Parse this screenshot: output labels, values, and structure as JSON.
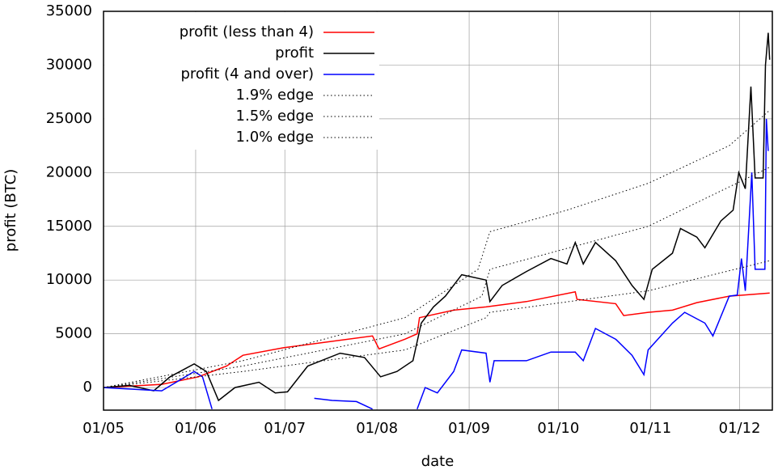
{
  "chart_data": {
    "type": "line",
    "x_label": "date",
    "y_label": "profit (BTC)",
    "xlim": [
      0,
      225
    ],
    "ylim": [
      -2100,
      35000
    ],
    "xticks": [
      {
        "value": 0,
        "label": "01/05"
      },
      {
        "value": 31,
        "label": "01/06"
      },
      {
        "value": 61,
        "label": "01/07"
      },
      {
        "value": 92,
        "label": "01/08"
      },
      {
        "value": 123,
        "label": "01/09"
      },
      {
        "value": 153,
        "label": "01/10"
      },
      {
        "value": 184,
        "label": "01/11"
      },
      {
        "value": 214,
        "label": "01/12"
      }
    ],
    "yticks": [
      0,
      5000,
      10000,
      15000,
      20000,
      25000,
      30000,
      35000
    ],
    "grid": true,
    "legend": "upper left",
    "series": [
      {
        "name": "profit (less than 4)",
        "color": "#ff0000",
        "style": "solid",
        "x": [
          0,
          19.6,
          31.9,
          41.4,
          46.9,
          60.5,
          74.2,
          90.5,
          92.7,
          101.4,
          105.5,
          106.3,
          117.8,
          128.7,
          142.3,
          158.7,
          159.3,
          172.3,
          175,
          183.2,
          191.4,
          199.6,
          210.5,
          224.1
        ],
        "values": [
          0,
          300,
          1000,
          2000,
          3000,
          3700,
          4200,
          4800,
          3600,
          4500,
          5000,
          6500,
          7200,
          7500,
          8000,
          8900,
          8200,
          7800,
          6700,
          7000,
          7200,
          7900,
          8500,
          8800
        ]
      },
      {
        "name": "profit",
        "color": "#000000",
        "style": "solid",
        "x": [
          0,
          8.7,
          16.9,
          22.4,
          30.5,
          34.6,
          38.7,
          44.2,
          52.3,
          57.8,
          61.9,
          68.7,
          79.6,
          87.8,
          93.2,
          98.7,
          104.1,
          106.9,
          111,
          115,
          120.5,
          128.7,
          130,
          134.1,
          142.3,
          150.5,
          155.9,
          158.7,
          161.4,
          165.5,
          172.3,
          177.8,
          181.8,
          184.6,
          191.4,
          194.1,
          199.6,
          202.3,
          207.7,
          211.8,
          213.7,
          215.9,
          217.8,
          219.2,
          221.9,
          222.7,
          223.6,
          224.1
        ],
        "values": [
          0,
          200,
          -300,
          1000,
          2200,
          1500,
          -1200,
          0,
          500,
          -500,
          -400,
          2000,
          3200,
          2800,
          1000,
          1500,
          2500,
          6000,
          7500,
          8500,
          10500,
          10000,
          8000,
          9500,
          10800,
          12000,
          11500,
          13500,
          11500,
          13500,
          11800,
          9500,
          8200,
          11000,
          12500,
          14800,
          14000,
          13000,
          15500,
          16500,
          20000,
          18500,
          28000,
          19500,
          19500,
          30000,
          33000,
          30500
        ]
      },
      {
        "name": "profit (4 and over)",
        "color": "#0000ff",
        "style": "solid",
        "x": [
          0,
          19.6,
          30.5,
          33.3,
          36.5,
          50,
          70.9,
          76.9,
          85.1,
          90.5,
          98,
          105.5,
          108.2,
          112.3,
          117.8,
          120.5,
          128.7,
          130,
          131.4,
          142.3,
          150.5,
          158.7,
          161.4,
          165.5,
          172.3,
          177.8,
          181.8,
          183.2,
          191.4,
          195.5,
          202.3,
          205,
          210.5,
          213.2,
          214.6,
          215.9,
          218.1,
          219.2,
          222.5,
          223,
          223.6
        ],
        "values": [
          0,
          -300,
          1500,
          1000,
          -2000,
          null,
          -1000,
          -1200,
          -1300,
          -2000,
          null,
          -2000,
          0,
          -500,
          1500,
          3500,
          3200,
          500,
          2500,
          2500,
          3300,
          3300,
          2500,
          5500,
          4500,
          3000,
          1200,
          3500,
          6000,
          7000,
          6000,
          4800,
          8500,
          8600,
          12000,
          9000,
          20000,
          11000,
          11000,
          25000,
          22000
        ]
      },
      {
        "name": "1.9% edge",
        "color": "#000000",
        "style": "dotted",
        "x": [
          0,
          46.9,
          101.4,
          126,
          130,
          155.9,
          183.2,
          210.5,
          224.1
        ],
        "values": [
          0,
          2500,
          6500,
          11000,
          14500,
          16500,
          19000,
          22500,
          25800
        ]
      },
      {
        "name": "1.5% edge",
        "color": "#000000",
        "style": "dotted",
        "x": [
          0,
          46.9,
          101.4,
          127.3,
          130,
          183.2,
          224.1
        ],
        "values": [
          0,
          2000,
          5000,
          8500,
          11000,
          15000,
          20500
        ]
      },
      {
        "name": "1.0% edge",
        "color": "#000000",
        "style": "dotted",
        "x": [
          0,
          46.9,
          101.4,
          128.7,
          130,
          183.2,
          224.1
        ],
        "values": [
          0,
          1500,
          3500,
          6500,
          7000,
          9000,
          11800
        ]
      }
    ]
  }
}
